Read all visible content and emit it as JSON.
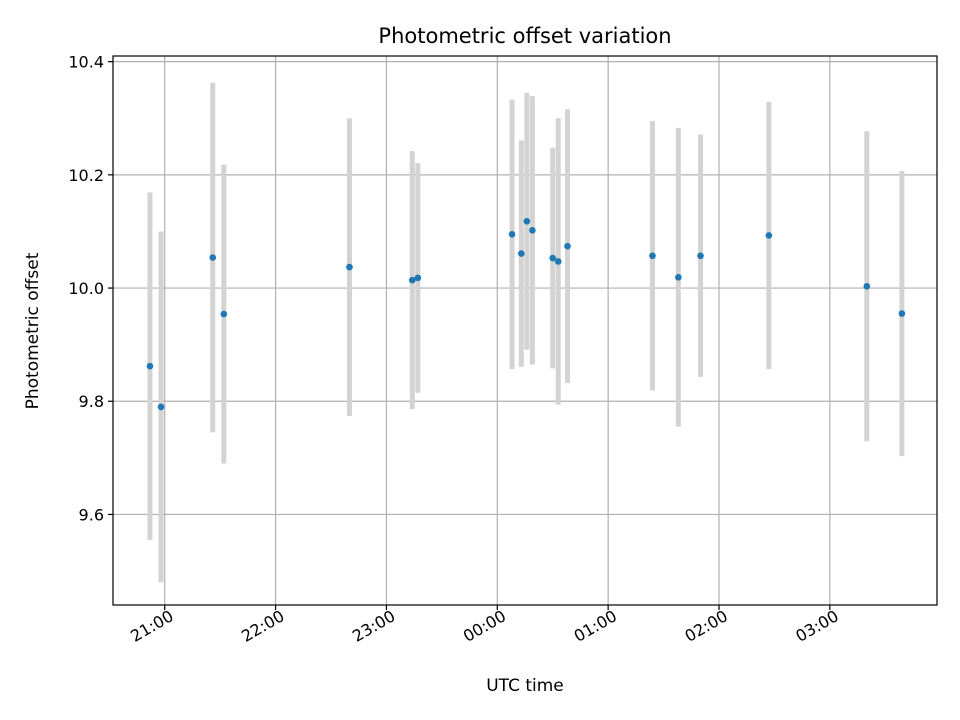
{
  "chart_data": {
    "type": "scatter",
    "title": "Photometric offset variation",
    "xlabel": "UTC time",
    "ylabel": "Photometric offset",
    "x_ticks": [
      "21:00",
      "22:00",
      "23:00",
      "00:00",
      "01:00",
      "02:00",
      "03:00"
    ],
    "y_ticks": [
      "9.6",
      "9.8",
      "10.0",
      "10.2",
      "10.4"
    ],
    "y_tick_values": [
      9.6,
      9.8,
      10.0,
      10.2,
      10.4
    ],
    "xlim": [
      "20:32",
      "03:58"
    ],
    "ylim": [
      9.44,
      10.41
    ],
    "grid": true,
    "colors": {
      "point": "#1f77b4",
      "errorbar": "#d3d3d3",
      "grid": "#b0b0b0"
    },
    "points": [
      {
        "t": "20:52",
        "y": 9.862,
        "err": 0.307
      },
      {
        "t": "20:58",
        "y": 9.79,
        "err": 0.31
      },
      {
        "t": "21:26",
        "y": 10.054,
        "err": 0.309
      },
      {
        "t": "21:32",
        "y": 9.954,
        "err": 0.264
      },
      {
        "t": "22:40",
        "y": 10.037,
        "err": 0.263
      },
      {
        "t": "23:14",
        "y": 10.014,
        "err": 0.228
      },
      {
        "t": "23:17",
        "y": 10.018,
        "err": 0.203
      },
      {
        "t": "00:08",
        "y": 10.095,
        "err": 0.238
      },
      {
        "t": "00:13",
        "y": 10.061,
        "err": 0.2
      },
      {
        "t": "00:16",
        "y": 10.118,
        "err": 0.227
      },
      {
        "t": "00:19",
        "y": 10.102,
        "err": 0.237
      },
      {
        "t": "00:30",
        "y": 10.053,
        "err": 0.195
      },
      {
        "t": "00:33",
        "y": 10.047,
        "err": 0.253
      },
      {
        "t": "00:38",
        "y": 10.074,
        "err": 0.242
      },
      {
        "t": "01:24",
        "y": 10.057,
        "err": 0.238
      },
      {
        "t": "01:38",
        "y": 10.019,
        "err": 0.264
      },
      {
        "t": "01:50",
        "y": 10.057,
        "err": 0.214
      },
      {
        "t": "02:27",
        "y": 10.093,
        "err": 0.236
      },
      {
        "t": "03:20",
        "y": 10.003,
        "err": 0.274
      },
      {
        "t": "03:39",
        "y": 9.955,
        "err": 0.252
      }
    ]
  }
}
